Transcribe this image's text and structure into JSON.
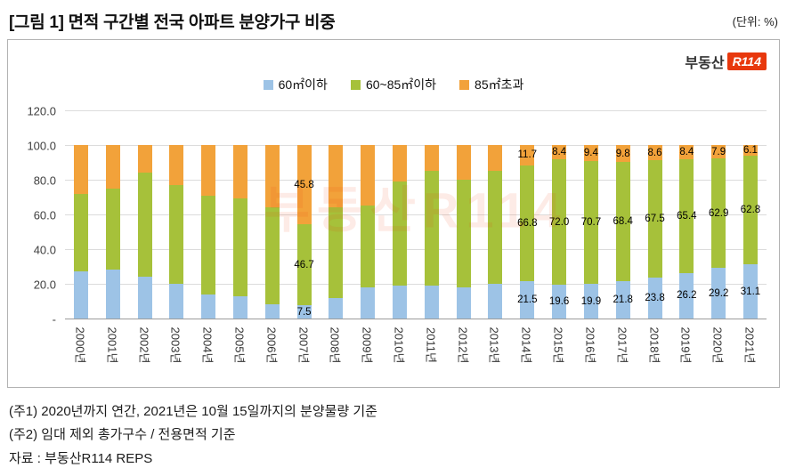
{
  "header": {
    "title": "[그림 1] 면적 구간별 전국 아파트 분양가구 비중",
    "unit": "(단위: %)"
  },
  "logo": {
    "prefix": "부동산",
    "brand": "R114"
  },
  "watermark": "부동산R114",
  "footnotes": {
    "note1": "(주1) 2020년까지 연간, 2021년은 10월 15일까지의 분양물량 기준",
    "note2": "(주2) 임대 제외 총가구수 / 전용면적 기준",
    "source": "자료 : 부동산R114 REPS"
  },
  "chart_data": {
    "type": "bar",
    "subtype": "stacked-100",
    "title": "[그림 1] 면적 구간별 전국 아파트 분양가구 비중",
    "unit_label": "(단위: %)",
    "legend_position": "top",
    "grid": true,
    "ylim": [
      0,
      120
    ],
    "ytick_step": 20,
    "ytick_labels": [
      "-",
      "20.0",
      "40.0",
      "60.0",
      "80.0",
      "100.0",
      "120.0"
    ],
    "categories": [
      "2000년",
      "2001년",
      "2002년",
      "2003년",
      "2004년",
      "2005년",
      "2006년",
      "2007년",
      "2008년",
      "2009년",
      "2010년",
      "2011년",
      "2012년",
      "2013년",
      "2014년",
      "2015년",
      "2016년",
      "2017년",
      "2018년",
      "2019년",
      "2020년",
      "2021년"
    ],
    "series": [
      {
        "name": "60㎡이하",
        "color": "#9DC3E6",
        "values": [
          27.0,
          28.0,
          24.0,
          20.0,
          14.0,
          13.0,
          8.0,
          7.5,
          12.0,
          18.0,
          19.0,
          19.0,
          18.0,
          20.0,
          21.5,
          19.6,
          19.9,
          21.8,
          23.8,
          26.2,
          29.2,
          31.1
        ]
      },
      {
        "name": "60~85㎡이하",
        "color": "#A6C13A",
        "values": [
          45.0,
          47.0,
          60.0,
          57.0,
          57.0,
          56.0,
          56.0,
          46.7,
          52.0,
          47.0,
          60.0,
          66.0,
          62.0,
          65.0,
          66.8,
          72.0,
          70.7,
          68.4,
          67.5,
          65.4,
          62.9,
          62.8
        ]
      },
      {
        "name": "85㎡초과",
        "color": "#F2A23A",
        "values": [
          28.0,
          25.0,
          16.0,
          23.0,
          29.0,
          31.0,
          36.0,
          45.8,
          36.0,
          35.0,
          21.0,
          15.0,
          20.0,
          15.0,
          11.7,
          8.4,
          9.4,
          9.8,
          8.6,
          8.4,
          7.9,
          6.1
        ]
      }
    ],
    "label_indices": [
      7,
      14,
      15,
      16,
      17,
      18,
      19,
      20,
      21
    ]
  }
}
